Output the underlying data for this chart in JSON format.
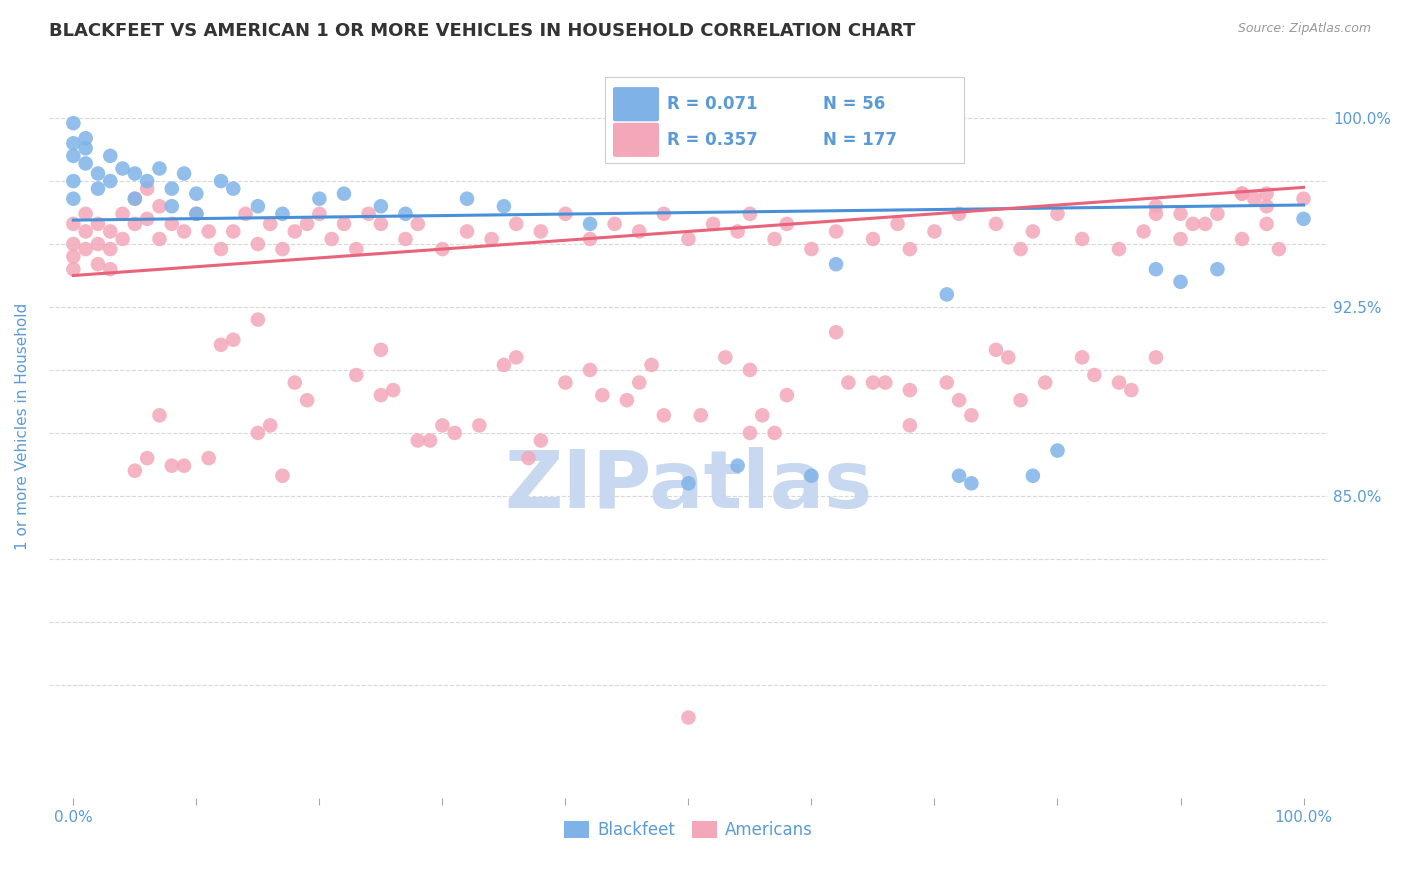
{
  "title": "BLACKFEET VS AMERICAN 1 OR MORE VEHICLES IN HOUSEHOLD CORRELATION CHART",
  "source": "Source: ZipAtlas.com",
  "ylabel": "1 or more Vehicles in Household",
  "x_ticks": [
    0.0,
    0.1,
    0.2,
    0.3,
    0.4,
    0.5,
    0.6,
    0.7,
    0.8,
    0.9,
    1.0
  ],
  "y_ticks": [
    0.775,
    0.8,
    0.825,
    0.85,
    0.875,
    0.9,
    0.925,
    0.95,
    0.975,
    1.0
  ],
  "y_tick_labels": [
    "",
    "",
    "",
    "85.0%",
    "",
    "",
    "92.5%",
    "",
    "",
    "100.0%"
  ],
  "ylim": [
    0.73,
    1.025
  ],
  "xlim": [
    -0.02,
    1.02
  ],
  "legend_blue_R": "0.071",
  "legend_blue_N": "56",
  "legend_pink_R": "0.357",
  "legend_pink_N": "177",
  "blue_color": "#7fb3e8",
  "pink_color": "#f4a7b9",
  "trend_blue_color": "#4a90d9",
  "trend_pink_color": "#e8647a",
  "title_color": "#333333",
  "axis_label_color": "#5b9bd5",
  "watermark_color": "#c8d8f0",
  "background_color": "#ffffff",
  "grid_color": "#d8d8d8",
  "blue_trend_y_start": 0.9595,
  "blue_trend_y_end": 0.9655,
  "pink_trend_y_start": 0.9375,
  "pink_trend_y_end": 0.9725,
  "blue_scatter_x": [
    0.0,
    0.0,
    0.0,
    0.0,
    0.0,
    0.01,
    0.01,
    0.01,
    0.02,
    0.02,
    0.03,
    0.03,
    0.04,
    0.05,
    0.05,
    0.06,
    0.07,
    0.08,
    0.08,
    0.09,
    0.1,
    0.1,
    0.12,
    0.13,
    0.15,
    0.17,
    0.2,
    0.22,
    0.25,
    0.27,
    0.32,
    0.35,
    0.42,
    0.5,
    0.54,
    0.6,
    0.62,
    0.71,
    0.72,
    0.73,
    0.78,
    0.8,
    0.88,
    0.9,
    0.93,
    1.0
  ],
  "blue_scatter_y": [
    0.998,
    0.99,
    0.985,
    0.975,
    0.968,
    0.992,
    0.988,
    0.982,
    0.978,
    0.972,
    0.985,
    0.975,
    0.98,
    0.978,
    0.968,
    0.975,
    0.98,
    0.972,
    0.965,
    0.978,
    0.97,
    0.962,
    0.975,
    0.972,
    0.965,
    0.962,
    0.968,
    0.97,
    0.965,
    0.962,
    0.968,
    0.965,
    0.958,
    0.855,
    0.862,
    0.858,
    0.942,
    0.93,
    0.858,
    0.855,
    0.858,
    0.868,
    0.94,
    0.935,
    0.94,
    0.96
  ],
  "pink_scatter_x": [
    0.0,
    0.0,
    0.0,
    0.0,
    0.01,
    0.01,
    0.01,
    0.02,
    0.02,
    0.02,
    0.03,
    0.03,
    0.03,
    0.04,
    0.04,
    0.05,
    0.05,
    0.06,
    0.06,
    0.07,
    0.07,
    0.08,
    0.09,
    0.1,
    0.11,
    0.12,
    0.13,
    0.14,
    0.15,
    0.16,
    0.17,
    0.18,
    0.19,
    0.2,
    0.21,
    0.22,
    0.23,
    0.24,
    0.25,
    0.27,
    0.28,
    0.3,
    0.32,
    0.34,
    0.36,
    0.38,
    0.4,
    0.42,
    0.44,
    0.46,
    0.48,
    0.5,
    0.52,
    0.54,
    0.55,
    0.57,
    0.58,
    0.6,
    0.62,
    0.65,
    0.67,
    0.68,
    0.7,
    0.72,
    0.75,
    0.77,
    0.78,
    0.8,
    0.82,
    0.85,
    0.87,
    0.88,
    0.9,
    0.92,
    0.95,
    0.97,
    0.98,
    1.0,
    0.5,
    0.15,
    0.25,
    0.38,
    0.42,
    0.07,
    0.12,
    0.18,
    0.3,
    0.4,
    0.55,
    0.62,
    0.72,
    0.82,
    0.9,
    0.95,
    0.09,
    0.19,
    0.29,
    0.47,
    0.58,
    0.68,
    0.79,
    0.88,
    0.97,
    0.13,
    0.23,
    0.33,
    0.43,
    0.53,
    0.63,
    0.73,
    0.83,
    0.93,
    0.05,
    0.15,
    0.25,
    0.35,
    0.45,
    0.55,
    0.65,
    0.75,
    0.85,
    0.95,
    0.06,
    0.16,
    0.26,
    0.36,
    0.46,
    0.56,
    0.66,
    0.76,
    0.86,
    0.96,
    0.08,
    0.28,
    0.48,
    0.68,
    0.88,
    0.11,
    0.31,
    0.51,
    0.71,
    0.91,
    0.17,
    0.37,
    0.57,
    0.77,
    0.97
  ],
  "pink_scatter_y": [
    0.958,
    0.95,
    0.945,
    0.94,
    0.962,
    0.955,
    0.948,
    0.958,
    0.95,
    0.942,
    0.955,
    0.948,
    0.94,
    0.962,
    0.952,
    0.968,
    0.958,
    0.972,
    0.96,
    0.965,
    0.952,
    0.958,
    0.955,
    0.962,
    0.955,
    0.948,
    0.955,
    0.962,
    0.95,
    0.958,
    0.948,
    0.955,
    0.958,
    0.962,
    0.952,
    0.958,
    0.948,
    0.962,
    0.958,
    0.952,
    0.958,
    0.948,
    0.955,
    0.952,
    0.958,
    0.955,
    0.962,
    0.952,
    0.958,
    0.955,
    0.962,
    0.952,
    0.958,
    0.955,
    0.962,
    0.952,
    0.958,
    0.948,
    0.955,
    0.952,
    0.958,
    0.948,
    0.955,
    0.962,
    0.958,
    0.948,
    0.955,
    0.962,
    0.952,
    0.948,
    0.955,
    0.962,
    0.952,
    0.958,
    0.952,
    0.958,
    0.948,
    0.968,
    0.762,
    0.92,
    0.908,
    0.872,
    0.9,
    0.882,
    0.91,
    0.895,
    0.878,
    0.895,
    0.9,
    0.915,
    0.888,
    0.905,
    0.962,
    0.97,
    0.862,
    0.888,
    0.872,
    0.902,
    0.89,
    0.878,
    0.895,
    0.965,
    0.97,
    0.912,
    0.898,
    0.878,
    0.89,
    0.905,
    0.895,
    0.882,
    0.898,
    0.962,
    0.86,
    0.875,
    0.89,
    0.902,
    0.888,
    0.875,
    0.895,
    0.908,
    0.895,
    0.97,
    0.865,
    0.878,
    0.892,
    0.905,
    0.895,
    0.882,
    0.895,
    0.905,
    0.892,
    0.968,
    0.862,
    0.872,
    0.882,
    0.892,
    0.905,
    0.865,
    0.875,
    0.882,
    0.895,
    0.958,
    0.858,
    0.865,
    0.875,
    0.888,
    0.965
  ],
  "watermark_text": "ZIPatlas"
}
